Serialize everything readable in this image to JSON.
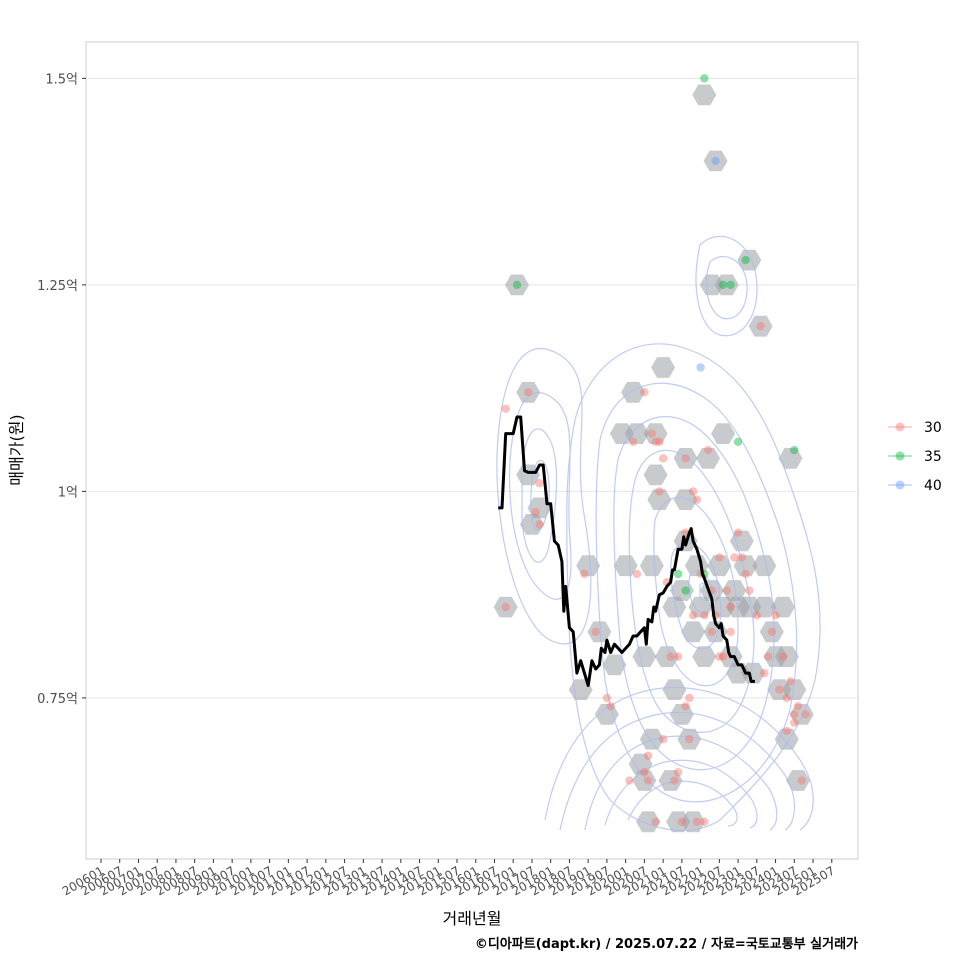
{
  "chart_data": {
    "type": "scatter",
    "title": "",
    "xlabel": "거래년월",
    "ylabel": "매매가(원)",
    "caption": "©디아파트(dapt.kr) / 2025.07.22 / 자료=국토교통부 실거래가",
    "x_ticks": [
      "200601",
      "200607",
      "200701",
      "200707",
      "200801",
      "200807",
      "200901",
      "200907",
      "201001",
      "201007",
      "201101",
      "201107",
      "201201",
      "201207",
      "201301",
      "201307",
      "201401",
      "201407",
      "201501",
      "201507",
      "201601",
      "201607",
      "201701",
      "201707",
      "201801",
      "201807",
      "201901",
      "201907",
      "202001",
      "202007",
      "202101",
      "202107",
      "202201",
      "202207",
      "202301",
      "202307",
      "202401",
      "202407",
      "202501",
      "202507"
    ],
    "y_ticks": [
      {
        "value": 0.75,
        "label": "0.75억"
      },
      {
        "value": 1.0,
        "label": "1억"
      },
      {
        "value": 1.25,
        "label": "1.25억"
      },
      {
        "value": 1.5,
        "label": "1.5억"
      }
    ],
    "x_range": [
      2005.6,
      2026.2
    ],
    "y_range": [
      0.555,
      1.544
    ],
    "legend": {
      "position": "right",
      "items": [
        {
          "label": "30",
          "color": "#F8766D"
        },
        {
          "label": "35",
          "color": "#00BA38"
        },
        {
          "label": "40",
          "color": "#619CFF"
        }
      ]
    },
    "hexbins": [
      [
        2016.8,
        0.86
      ],
      [
        2017.1,
        1.25
      ],
      [
        2017.4,
        1.12
      ],
      [
        2017.5,
        0.96
      ],
      [
        2017.4,
        1.02
      ],
      [
        2017.7,
        0.98
      ],
      [
        2018.8,
        0.76
      ],
      [
        2019.0,
        0.91
      ],
      [
        2019.3,
        0.83
      ],
      [
        2019.5,
        0.73
      ],
      [
        2019.7,
        0.79
      ],
      [
        2019.9,
        1.07
      ],
      [
        2020.0,
        0.91
      ],
      [
        2020.2,
        1.12
      ],
      [
        2020.3,
        1.07
      ],
      [
        2020.4,
        0.67
      ],
      [
        2020.5,
        0.8
      ],
      [
        2020.5,
        0.65
      ],
      [
        2020.6,
        0.6
      ],
      [
        2020.7,
        0.7
      ],
      [
        2020.7,
        0.91
      ],
      [
        2020.8,
        1.02
      ],
      [
        2020.8,
        1.07
      ],
      [
        2020.9,
        0.99
      ],
      [
        2021.0,
        1.15
      ],
      [
        2021.1,
        0.8
      ],
      [
        2021.2,
        0.65
      ],
      [
        2021.3,
        0.86
      ],
      [
        2021.3,
        0.76
      ],
      [
        2021.4,
        0.6
      ],
      [
        2021.5,
        0.88
      ],
      [
        2021.5,
        0.73
      ],
      [
        2021.6,
        1.04
      ],
      [
        2021.6,
        0.99
      ],
      [
        2021.6,
        0.94
      ],
      [
        2021.7,
        0.7
      ],
      [
        2021.8,
        0.6
      ],
      [
        2021.8,
        0.83
      ],
      [
        2021.9,
        0.91
      ],
      [
        2022.1,
        1.48
      ],
      [
        2022.0,
        0.86
      ],
      [
        2022.1,
        0.8
      ],
      [
        2022.2,
        1.04
      ],
      [
        2022.3,
        1.25
      ],
      [
        2022.3,
        0.88
      ],
      [
        2022.4,
        1.4
      ],
      [
        2022.4,
        0.83
      ],
      [
        2022.5,
        0.91
      ],
      [
        2022.6,
        1.07
      ],
      [
        2022.6,
        0.86
      ],
      [
        2022.7,
        1.25
      ],
      [
        2022.8,
        0.8
      ],
      [
        2022.9,
        0.88
      ],
      [
        2023.0,
        0.86
      ],
      [
        2023.0,
        0.78
      ],
      [
        2023.1,
        0.94
      ],
      [
        2023.2,
        0.91
      ],
      [
        2023.3,
        1.28
      ],
      [
        2023.3,
        0.86
      ],
      [
        2023.4,
        0.78
      ],
      [
        2023.6,
        1.2
      ],
      [
        2023.7,
        0.91
      ],
      [
        2023.7,
        0.86
      ],
      [
        2023.9,
        0.83
      ],
      [
        2024.0,
        0.8
      ],
      [
        2024.1,
        0.76
      ],
      [
        2024.2,
        0.86
      ],
      [
        2024.3,
        0.7
      ],
      [
        2024.4,
        1.04
      ],
      [
        2024.3,
        0.8
      ],
      [
        2024.5,
        0.76
      ],
      [
        2024.7,
        0.73
      ],
      [
        2024.6,
        0.65
      ]
    ],
    "series": [
      {
        "name": "30",
        "color": "#F8766D",
        "points": [
          [
            2016.8,
            0.86
          ],
          [
            2016.8,
            1.1
          ],
          [
            2017.4,
            1.12
          ],
          [
            2017.6,
            0.975
          ],
          [
            2017.7,
            0.96
          ],
          [
            2017.7,
            1.01
          ],
          [
            2018.9,
            0.9
          ],
          [
            2019.2,
            0.83
          ],
          [
            2019.5,
            0.75
          ],
          [
            2019.6,
            0.74
          ],
          [
            2020.1,
            0.65
          ],
          [
            2020.2,
            1.06
          ],
          [
            2020.3,
            0.9
          ],
          [
            2020.5,
            1.12
          ],
          [
            2020.5,
            0.66
          ],
          [
            2020.6,
            0.65
          ],
          [
            2020.6,
            0.68
          ],
          [
            2020.7,
            1.07
          ],
          [
            2020.8,
            1.06
          ],
          [
            2020.8,
            0.6
          ],
          [
            2020.9,
            1.0
          ],
          [
            2020.9,
            1.06
          ],
          [
            2021.0,
            1.04
          ],
          [
            2021.0,
            0.7
          ],
          [
            2021.1,
            0.89
          ],
          [
            2021.2,
            0.8
          ],
          [
            2021.3,
            0.65
          ],
          [
            2021.4,
            0.66
          ],
          [
            2021.4,
            0.8
          ],
          [
            2021.5,
            0.6
          ],
          [
            2021.6,
            1.04
          ],
          [
            2021.6,
            0.95
          ],
          [
            2021.6,
            0.74
          ],
          [
            2021.7,
            0.75
          ],
          [
            2021.7,
            0.7
          ],
          [
            2021.8,
            0.85
          ],
          [
            2021.8,
            1.0
          ],
          [
            2021.9,
            0.6
          ],
          [
            2021.9,
            0.99
          ],
          [
            2022.0,
            0.9
          ],
          [
            2022.1,
            0.85
          ],
          [
            2022.1,
            0.6
          ],
          [
            2022.2,
            1.05
          ],
          [
            2022.3,
            0.88
          ],
          [
            2022.3,
            0.83
          ],
          [
            2022.4,
            0.85
          ],
          [
            2022.5,
            0.8
          ],
          [
            2022.5,
            0.92
          ],
          [
            2022.6,
            0.8
          ],
          [
            2022.7,
            0.88
          ],
          [
            2022.8,
            0.83
          ],
          [
            2022.8,
            0.86
          ],
          [
            2022.9,
            0.92
          ],
          [
            2023.0,
            0.95
          ],
          [
            2023.1,
            0.92
          ],
          [
            2023.2,
            0.9
          ],
          [
            2023.3,
            0.88
          ],
          [
            2023.5,
            0.85
          ],
          [
            2023.6,
            1.2
          ],
          [
            2023.7,
            0.78
          ],
          [
            2023.8,
            0.8
          ],
          [
            2023.9,
            0.83
          ],
          [
            2024.0,
            0.85
          ],
          [
            2024.1,
            0.76
          ],
          [
            2024.2,
            0.8
          ],
          [
            2024.3,
            0.75
          ],
          [
            2024.3,
            0.71
          ],
          [
            2024.4,
            0.77
          ],
          [
            2024.5,
            0.73
          ],
          [
            2024.5,
            0.72
          ],
          [
            2024.6,
            0.74
          ],
          [
            2024.7,
            0.65
          ],
          [
            2024.8,
            0.73
          ]
        ]
      },
      {
        "name": "35",
        "color": "#00BA38",
        "points": [
          [
            2017.1,
            1.25
          ],
          [
            2021.4,
            0.9
          ],
          [
            2021.6,
            0.88
          ],
          [
            2022.1,
            0.9
          ],
          [
            2022.1,
            1.5
          ],
          [
            2022.6,
            1.25
          ],
          [
            2022.8,
            1.25
          ],
          [
            2023.0,
            1.06
          ],
          [
            2023.2,
            1.28
          ],
          [
            2024.5,
            1.05
          ]
        ]
      },
      {
        "name": "40",
        "color": "#619CFF",
        "points": [
          [
            2022.0,
            1.15
          ],
          [
            2022.4,
            1.4
          ]
        ]
      }
    ],
    "median_line": {
      "name": "median",
      "color": "#000000",
      "points": [
        [
          2016.6,
          0.98
        ],
        [
          2016.7,
          0.98
        ],
        [
          2016.8,
          1.07
        ],
        [
          2016.9,
          1.07
        ],
        [
          2017.0,
          1.07
        ],
        [
          2017.1,
          1.09
        ],
        [
          2017.2,
          1.09
        ],
        [
          2017.3,
          1.025
        ],
        [
          2017.4,
          1.023
        ],
        [
          2017.5,
          1.023
        ],
        [
          2017.6,
          1.023
        ],
        [
          2017.7,
          1.032
        ],
        [
          2017.8,
          1.032
        ],
        [
          2017.9,
          0.985
        ],
        [
          2018.0,
          0.985
        ],
        [
          2018.1,
          0.94
        ],
        [
          2018.2,
          0.935
        ],
        [
          2018.3,
          0.915
        ],
        [
          2018.35,
          0.855
        ],
        [
          2018.4,
          0.885
        ],
        [
          2018.5,
          0.835
        ],
        [
          2018.6,
          0.83
        ],
        [
          2018.7,
          0.78
        ],
        [
          2018.8,
          0.795
        ],
        [
          2018.9,
          0.78
        ],
        [
          2019.0,
          0.765
        ],
        [
          2019.1,
          0.795
        ],
        [
          2019.2,
          0.785
        ],
        [
          2019.3,
          0.79
        ],
        [
          2019.35,
          0.81
        ],
        [
          2019.45,
          0.805
        ],
        [
          2019.5,
          0.82
        ],
        [
          2019.6,
          0.805
        ],
        [
          2019.7,
          0.815
        ],
        [
          2019.8,
          0.81
        ],
        [
          2019.9,
          0.805
        ],
        [
          2020.0,
          0.81
        ],
        [
          2020.1,
          0.815
        ],
        [
          2020.2,
          0.825
        ],
        [
          2020.3,
          0.825
        ],
        [
          2020.4,
          0.83
        ],
        [
          2020.5,
          0.835
        ],
        [
          2020.55,
          0.815
        ],
        [
          2020.6,
          0.845
        ],
        [
          2020.7,
          0.842
        ],
        [
          2020.75,
          0.86
        ],
        [
          2020.8,
          0.855
        ],
        [
          2020.9,
          0.875
        ],
        [
          2021.0,
          0.877
        ],
        [
          2021.1,
          0.885
        ],
        [
          2021.2,
          0.89
        ],
        [
          2021.25,
          0.905
        ],
        [
          2021.3,
          0.905
        ],
        [
          2021.4,
          0.93
        ],
        [
          2021.5,
          0.93
        ],
        [
          2021.55,
          0.945
        ],
        [
          2021.6,
          0.935
        ],
        [
          2021.7,
          0.95
        ],
        [
          2021.75,
          0.955
        ],
        [
          2021.8,
          0.94
        ],
        [
          2021.9,
          0.93
        ],
        [
          2022.0,
          0.915
        ],
        [
          2022.05,
          0.9
        ],
        [
          2022.1,
          0.895
        ],
        [
          2022.2,
          0.882
        ],
        [
          2022.3,
          0.87
        ],
        [
          2022.35,
          0.85
        ],
        [
          2022.4,
          0.84
        ],
        [
          2022.5,
          0.835
        ],
        [
          2022.55,
          0.84
        ],
        [
          2022.6,
          0.825
        ],
        [
          2022.7,
          0.82
        ],
        [
          2022.75,
          0.805
        ],
        [
          2022.8,
          0.8
        ],
        [
          2022.9,
          0.8
        ],
        [
          2023.0,
          0.79
        ],
        [
          2023.1,
          0.79
        ],
        [
          2023.15,
          0.785
        ],
        [
          2023.2,
          0.78
        ],
        [
          2023.3,
          0.78
        ],
        [
          2023.35,
          0.77
        ],
        [
          2023.45,
          0.77
        ]
      ]
    }
  }
}
